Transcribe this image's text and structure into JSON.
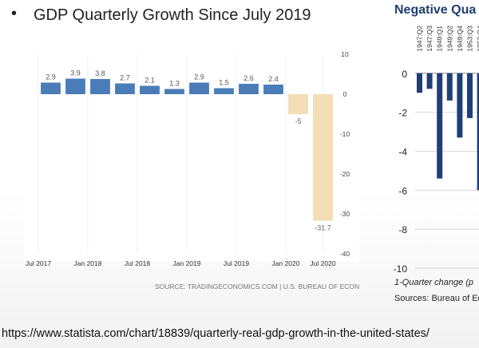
{
  "slide": {
    "bullet": "•",
    "title": "GDP Quarterly Growth Since July 2019",
    "url": "https://www.statista.com/chart/18839/quarterly-real-gdp-growth-in-the-united-states/"
  },
  "colors": {
    "positive_bar": "#4a7db8",
    "negative_bar": "#f3ddb5",
    "negative_bar_2": "#1f3f7a",
    "title_2": "#1f3f6e"
  },
  "chart_data": [
    {
      "type": "bar",
      "title": "",
      "xlabel": "",
      "ylabel": "",
      "categories": [
        "2017 Q3",
        "2017 Q4",
        "2018 Q1",
        "2018 Q2",
        "2018 Q3",
        "2018 Q4",
        "2019 Q1",
        "2019 Q2",
        "2019 Q3",
        "2019 Q4",
        "2020 Q1",
        "2020 Q2"
      ],
      "values": [
        2.9,
        3.9,
        3.8,
        2.7,
        2.1,
        1.3,
        2.9,
        1.5,
        2.6,
        2.4,
        -5,
        -31.7
      ],
      "data_labels": [
        "2.9",
        "3.9",
        "3.8",
        "2.7",
        "2.1",
        "1.3",
        "2.9",
        "1.5",
        "2.6",
        "2.4",
        "-5",
        "-31.7"
      ],
      "xtick_labels": [
        "Jul 2017",
        "Jan 2018",
        "Jul 2018",
        "Jan 2019",
        "Jul 2019",
        "Jan 2020",
        "Jul 2020"
      ],
      "ytick_labels": [
        "10",
        "0",
        "-10",
        "-20",
        "-30",
        "-40"
      ],
      "yticks": [
        10,
        0,
        -10,
        -20,
        -30,
        -40
      ],
      "ylim": [
        -40,
        10
      ],
      "y_axis_side": "right",
      "grid": "vertical",
      "source": "SOURCE: TRADINGECONOMICS.COM | U.S. BUREAU OF ECONOMIC ANALYSIS"
    },
    {
      "type": "bar",
      "title": "Negative Qua",
      "xlabel": "1-Quarter change (p",
      "ylabel": "",
      "categories": [
        "1947:Q2",
        "1947:Q3",
        "1949:Q1",
        "1949:Q2",
        "1949:Q4",
        "1953:Q3",
        "1953:Q4"
      ],
      "values": [
        -1.0,
        -0.8,
        -5.4,
        -1.4,
        -3.3,
        -2.3,
        -6.0
      ],
      "ytick_labels": [
        "0",
        "-2",
        "-4",
        "-6",
        "-8",
        "-10"
      ],
      "yticks": [
        0,
        -2,
        -4,
        -6,
        -8,
        -10
      ],
      "ylim": [
        -10,
        0.4
      ],
      "grid": "horizontal",
      "source": "Sources: Bureau of Eco"
    }
  ]
}
